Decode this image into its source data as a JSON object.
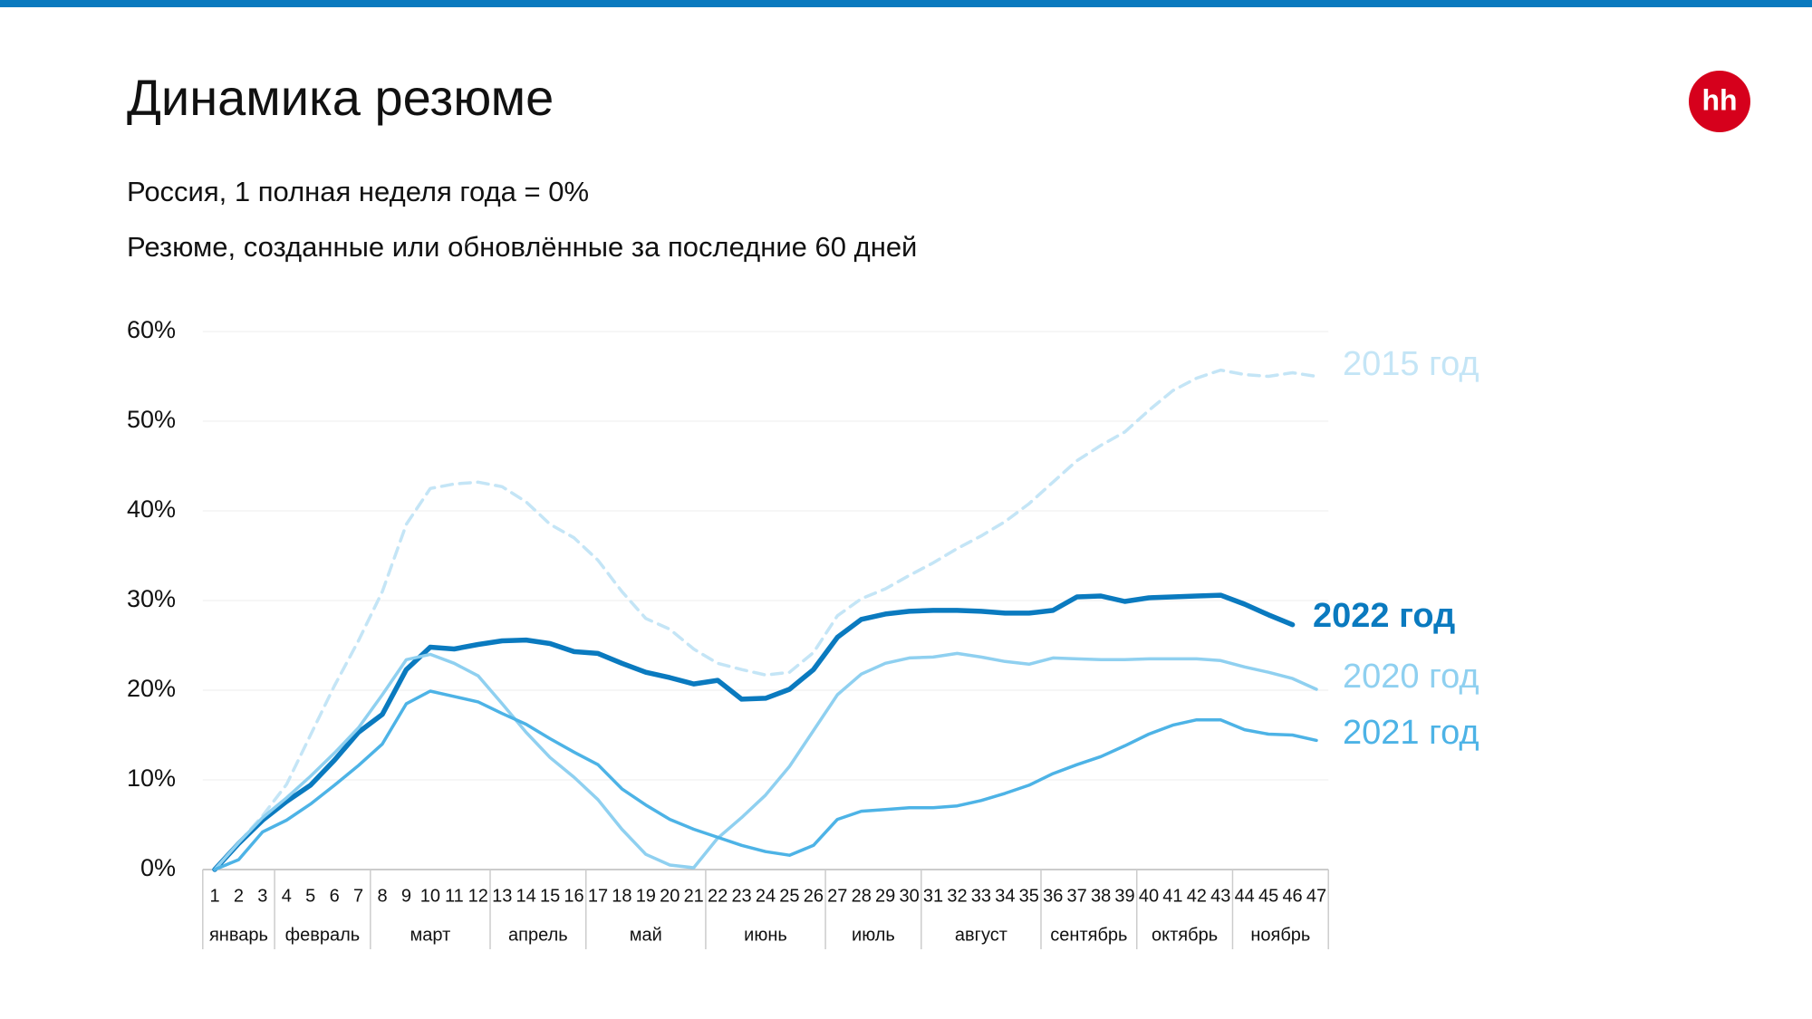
{
  "chart_data": {
    "type": "line",
    "title": "Динамика резюме",
    "subtitle": "Россия, 1 полная неделя года = 0%",
    "subtitle2": "Резюме, созданные или обновлённые за последние 60 дней",
    "logo": "hh",
    "categories": [
      1,
      2,
      3,
      4,
      5,
      6,
      7,
      8,
      9,
      10,
      11,
      12,
      13,
      14,
      15,
      16,
      17,
      18,
      19,
      20,
      21,
      22,
      23,
      24,
      25,
      26,
      27,
      28,
      29,
      30,
      31,
      32,
      33,
      34,
      35,
      36,
      37,
      38,
      39,
      40,
      41,
      42,
      43,
      44,
      45,
      46,
      47
    ],
    "months": [
      {
        "name": "январь",
        "from": 1,
        "to": 3
      },
      {
        "name": "февраль",
        "from": 4,
        "to": 7
      },
      {
        "name": "март",
        "from": 8,
        "to": 12
      },
      {
        "name": "апрель",
        "from": 13,
        "to": 16
      },
      {
        "name": "май",
        "from": 17,
        "to": 21
      },
      {
        "name": "июнь",
        "from": 22,
        "to": 26
      },
      {
        "name": "июль",
        "from": 27,
        "to": 30
      },
      {
        "name": "август",
        "from": 31,
        "to": 35
      },
      {
        "name": "сентябрь",
        "from": 36,
        "to": 39
      },
      {
        "name": "октябрь",
        "from": 40,
        "to": 43
      },
      {
        "name": "ноябрь",
        "from": 44,
        "to": 47
      }
    ],
    "ylim": [
      0,
      60
    ],
    "yticks": [
      {
        "value": 0,
        "label": "0%"
      },
      {
        "value": 10,
        "label": "10%"
      },
      {
        "value": 20,
        "label": "20%"
      },
      {
        "value": 30,
        "label": "30%"
      },
      {
        "value": 40,
        "label": "40%"
      },
      {
        "value": 50,
        "label": "50%"
      },
      {
        "value": 60,
        "label": "60%"
      }
    ],
    "grid": true,
    "series": [
      {
        "name": "2015 год",
        "color": "#c4e5f6",
        "dashed": true,
        "values": [
          0,
          3,
          6,
          9.5,
          15,
          20.5,
          25.5,
          31,
          38.5,
          42.5,
          43,
          43.2,
          42.7,
          41,
          38.5,
          37,
          34.5,
          31,
          28,
          26.8,
          24.6,
          23,
          22.3,
          21.7,
          22,
          24.2,
          28.3,
          30.2,
          31.3,
          32.8,
          34.2,
          35.8,
          37.2,
          38.8,
          40.8,
          43.2,
          45.6,
          47.3,
          48.8,
          51.2,
          53.4,
          54.8,
          55.7,
          55.2,
          55,
          55.4,
          55
        ]
      },
      {
        "name": "2022 год",
        "color": "#0a7abf",
        "bold": true,
        "values": [
          0,
          2.9,
          5.5,
          7.6,
          9.4,
          12.2,
          15.3,
          17.3,
          22.3,
          24.8,
          24.6,
          25.1,
          25.5,
          25.6,
          25.2,
          24.3,
          24.1,
          23,
          22,
          21.4,
          20.7,
          21.1,
          19,
          19.1,
          20.1,
          22.3,
          25.9,
          27.9,
          28.5,
          28.8,
          28.9,
          28.9,
          28.8,
          28.6,
          28.6,
          28.9,
          30.4,
          30.5,
          29.9,
          30.3,
          30.4,
          30.5,
          30.6,
          29.6,
          28.4,
          27.3,
          null
        ]
      },
      {
        "name": "2020 год",
        "color": "#8fd0f0",
        "values": [
          0,
          3,
          5.8,
          8,
          10.4,
          13,
          15.8,
          19.5,
          23.4,
          24,
          23,
          21.6,
          18.5,
          15.3,
          12.5,
          10.3,
          7.8,
          4.5,
          1.7,
          0.5,
          0.2,
          3.5,
          5.8,
          8.3,
          11.5,
          15.5,
          19.5,
          21.8,
          23,
          23.6,
          23.7,
          24.1,
          23.7,
          23.2,
          22.9,
          23.6,
          23.5,
          23.4,
          23.4,
          23.5,
          23.5,
          23.5,
          23.3,
          22.6,
          22,
          21.3,
          20.1
        ]
      },
      {
        "name": "2021 год",
        "color": "#4db3e6",
        "values": [
          0,
          1.1,
          4.2,
          5.5,
          7.3,
          9.4,
          11.6,
          14,
          18.5,
          19.9,
          19.3,
          18.7,
          17.4,
          16.2,
          14.6,
          13.1,
          11.7,
          9,
          7.2,
          5.6,
          4.5,
          3.6,
          2.7,
          2,
          1.6,
          2.7,
          5.6,
          6.5,
          6.7,
          6.9,
          6.9,
          7.1,
          7.7,
          8.5,
          9.4,
          10.7,
          11.7,
          12.6,
          13.8,
          15.1,
          16.1,
          16.7,
          16.7,
          15.6,
          15.1,
          15,
          14.4
        ]
      }
    ]
  }
}
